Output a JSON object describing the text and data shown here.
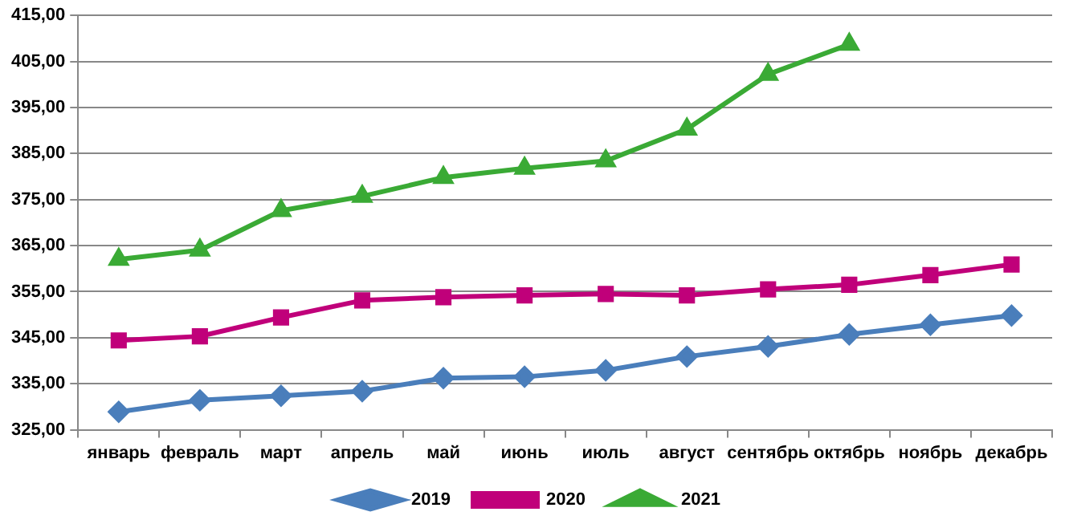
{
  "chart_data": {
    "type": "line",
    "categories": [
      "январь",
      "февраль",
      "март",
      "апрель",
      "май",
      "июнь",
      "июль",
      "август",
      "сентябрь",
      "октябрь",
      "ноябрь",
      "декабрь"
    ],
    "series": [
      {
        "name": "2019",
        "color": "#4a7ebb",
        "marker": "diamond",
        "values": [
          328.9,
          331.4,
          332.4,
          333.4,
          336.2,
          336.5,
          337.9,
          340.9,
          343.1,
          345.7,
          347.8,
          349.8
        ]
      },
      {
        "name": "2020",
        "color": "#c0007a",
        "marker": "square",
        "values": [
          344.4,
          345.3,
          349.4,
          353.1,
          353.8,
          354.2,
          354.5,
          354.2,
          355.5,
          356.5,
          358.6,
          360.9
        ]
      },
      {
        "name": "2021",
        "color": "#3aaa35",
        "marker": "triangle",
        "values": [
          362.0,
          364.0,
          372.6,
          375.7,
          379.8,
          381.8,
          383.4,
          390.3,
          402.2,
          408.7,
          null,
          null
        ]
      }
    ],
    "ylim": [
      325,
      415
    ],
    "yticks": [
      {
        "value": 325,
        "label": "325,00"
      },
      {
        "value": 335,
        "label": "335,00"
      },
      {
        "value": 345,
        "label": "345,00"
      },
      {
        "value": 355,
        "label": "355,00"
      },
      {
        "value": 365,
        "label": "365,00"
      },
      {
        "value": 375,
        "label": "375,00"
      },
      {
        "value": 385,
        "label": "385,00"
      },
      {
        "value": 395,
        "label": "395,00"
      },
      {
        "value": 405,
        "label": "405,00"
      },
      {
        "value": 415,
        "label": "415,00"
      }
    ],
    "grid": "y",
    "legend": "bottom"
  }
}
